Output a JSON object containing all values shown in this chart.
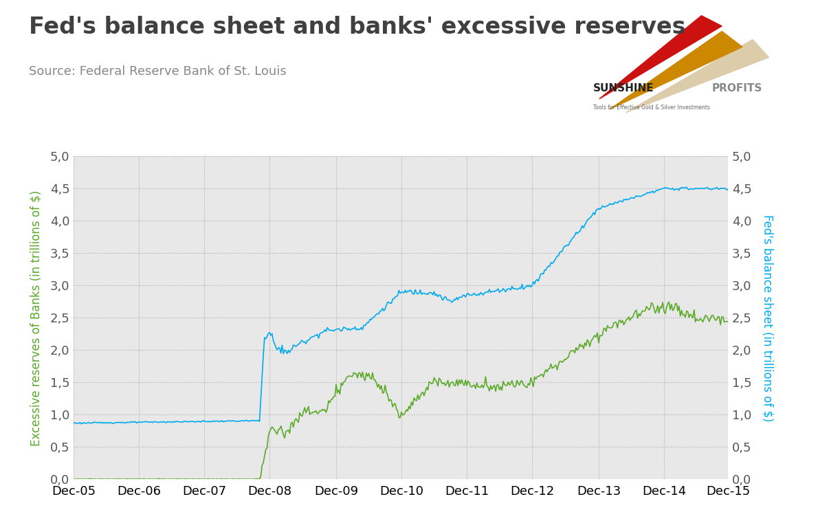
{
  "title": "Fed's balance sheet and banks' excessive reserves",
  "source": "Source: Federal Reserve Bank of St. Louis",
  "left_ylabel": "Excessive reserves of Banks (in trillions of $)",
  "right_ylabel": "Fed's balance sheet (in trillions of $)",
  "left_color": "#5aaa28",
  "right_color": "#00aaee",
  "fig_bg_color": "#ffffff",
  "plot_bg_color": "#e8e8e8",
  "ylim": [
    0.0,
    5.0
  ],
  "yticks": [
    0.0,
    0.5,
    1.0,
    1.5,
    2.0,
    2.5,
    3.0,
    3.5,
    4.0,
    4.5,
    5.0
  ],
  "xtick_labels": [
    "Dec-05",
    "Dec-06",
    "Dec-07",
    "Dec-08",
    "Dec-09",
    "Dec-10",
    "Dec-11",
    "Dec-12",
    "Dec-13",
    "Dec-14",
    "Dec-15"
  ],
  "title_fontsize": 24,
  "source_fontsize": 13,
  "axis_label_fontsize": 12,
  "tick_fontsize": 13,
  "grid_color": "#aaaaaa",
  "grid_style": ":"
}
